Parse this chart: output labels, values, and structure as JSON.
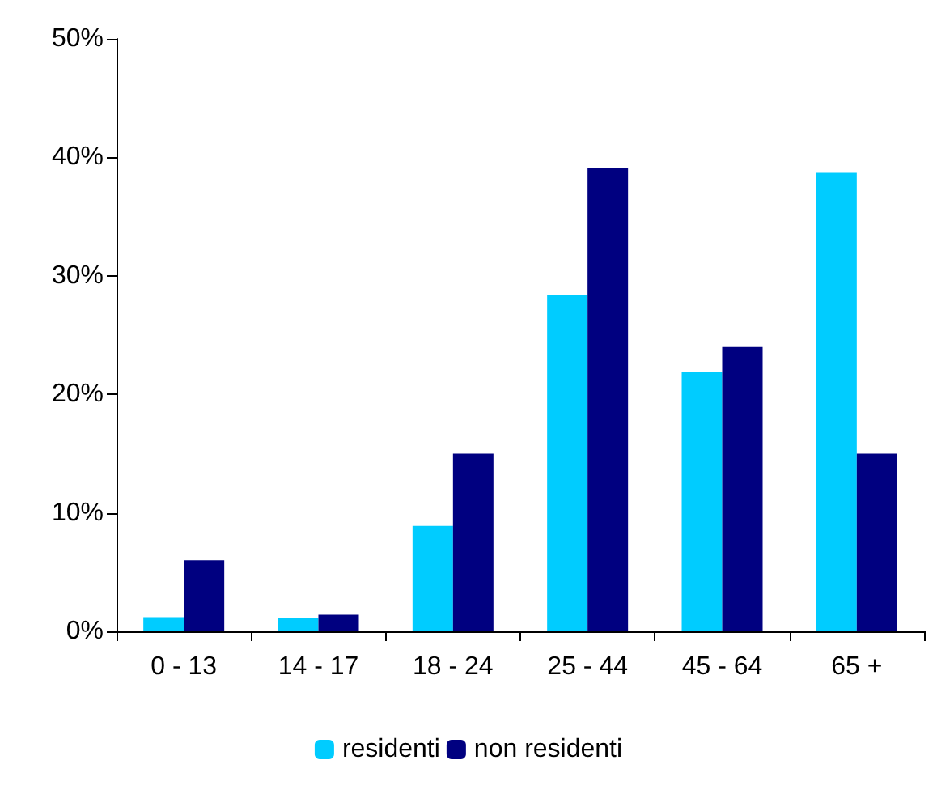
{
  "chart_data": {
    "type": "bar",
    "categories": [
      "0 - 13",
      "14 - 17",
      "18 - 24",
      "25 - 44",
      "45 - 64",
      "65 +"
    ],
    "series": [
      {
        "name": "residenti",
        "color": "#00ccff",
        "values": [
          1.2,
          1.1,
          8.9,
          28.4,
          21.9,
          38.7
        ]
      },
      {
        "name": "non residenti",
        "color": "#000080",
        "values": [
          6.0,
          1.4,
          15.0,
          39.1,
          24.0,
          15.0
        ]
      }
    ],
    "ylim": [
      0,
      50
    ],
    "yticks": [
      {
        "value": 0,
        "label": "0%"
      },
      {
        "value": 10,
        "label": "10%"
      },
      {
        "value": 20,
        "label": "20%"
      },
      {
        "value": 30,
        "label": "30%"
      },
      {
        "value": 40,
        "label": "40%"
      },
      {
        "value": 50,
        "label": "50%"
      }
    ],
    "grid": false,
    "legend": "bottom"
  }
}
